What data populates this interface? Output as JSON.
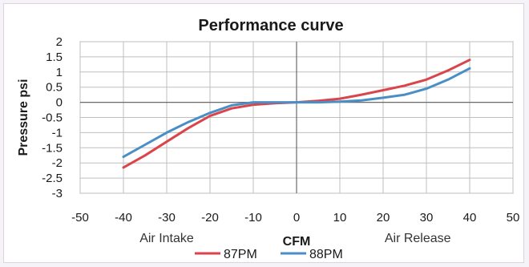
{
  "chart_data": {
    "type": "line",
    "title": "Performance curve",
    "xlabel": "CFM",
    "ylabel": "Pressure psi",
    "xlim": [
      -50,
      50
    ],
    "ylim": [
      -3,
      2
    ],
    "x_ticks": [
      -50,
      -40,
      -30,
      -20,
      -10,
      0,
      10,
      20,
      30,
      40,
      50
    ],
    "y_ticks": [
      2,
      1.5,
      1,
      0.5,
      0,
      -0.5,
      -1,
      -1.5,
      -2,
      -2.5,
      -3
    ],
    "x_tick_labels": [
      "-50",
      "-40",
      "-30",
      "-20",
      "-10",
      "0",
      "10",
      "20",
      "30",
      "40",
      "50"
    ],
    "y_tick_labels": [
      "2",
      "1.5",
      "1",
      "0.5",
      "0",
      "-0.5",
      "-1",
      "-1.5",
      "-2",
      "-2.5",
      "-3"
    ],
    "grid": true,
    "legend_position": "bottom",
    "annotations": [
      "Air Intake",
      "Air Release"
    ],
    "series": [
      {
        "name": "87PM",
        "color": "#d9454a",
        "x": [
          -40,
          -35,
          -30,
          -25,
          -20,
          -15,
          -10,
          -5,
          0,
          5,
          10,
          15,
          20,
          25,
          30,
          35,
          40
        ],
        "y": [
          -2.15,
          -1.75,
          -1.3,
          -0.85,
          -0.45,
          -0.2,
          -0.08,
          -0.03,
          0,
          0.05,
          0.12,
          0.25,
          0.4,
          0.55,
          0.75,
          1.05,
          1.4
        ]
      },
      {
        "name": "88PM",
        "color": "#4a8ec6",
        "x": [
          -40,
          -35,
          -30,
          -25,
          -20,
          -15,
          -10,
          -5,
          0,
          5,
          10,
          15,
          20,
          25,
          30,
          35,
          40
        ],
        "y": [
          -1.8,
          -1.4,
          -1.0,
          -0.65,
          -0.35,
          -0.1,
          0.0,
          0.0,
          0,
          0.0,
          0.02,
          0.06,
          0.15,
          0.25,
          0.45,
          0.75,
          1.12
        ]
      }
    ]
  }
}
